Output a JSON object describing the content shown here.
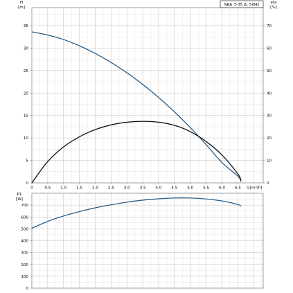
{
  "chart_data": [
    {
      "type": "line",
      "title": "SBA 3-35 A, 50Hz",
      "xlabel": "Q [m³/h]",
      "x_unit_label": "Q",
      "x_unit_suffix": "[m³/h]",
      "ylabel_left_name": "H",
      "ylabel_left_unit": "[m]",
      "ylabel_right_name": "eta",
      "ylabel_right_unit": "[%]",
      "xlim": [
        0,
        7.3
      ],
      "ylim_left": [
        0,
        39
      ],
      "ylim_right": [
        0,
        78
      ],
      "x_ticks": [
        "0",
        "0.5",
        "1.0",
        "1.5",
        "2.0",
        "2.5",
        "3.0",
        "3.5",
        "4.0",
        "4.5",
        "5.0",
        "5.5",
        "6.0",
        "6.5"
      ],
      "x_tick_values": [
        0,
        0.5,
        1.0,
        1.5,
        2.0,
        2.5,
        3.0,
        3.5,
        4.0,
        4.5,
        5.0,
        5.5,
        6.0,
        6.5
      ],
      "y_left_ticks": [
        "0",
        "5",
        "10",
        "15",
        "20",
        "25",
        "30",
        "35"
      ],
      "y_left_tick_values": [
        0,
        5,
        10,
        15,
        20,
        25,
        30,
        35
      ],
      "y_right_ticks": [
        "0",
        "10",
        "20",
        "30",
        "40",
        "50",
        "60",
        "70"
      ],
      "y_right_tick_values": [
        0,
        10,
        20,
        30,
        40,
        50,
        60,
        70
      ],
      "grid": true,
      "series": [
        {
          "axis": "left",
          "color": "#2b5d86",
          "x": [
            0,
            0.5,
            1.0,
            1.5,
            2.0,
            2.5,
            3.0,
            3.5,
            4.0,
            4.5,
            5.0,
            5.5,
            6.0,
            6.5,
            6.6
          ],
          "values": [
            33.6,
            32.9,
            31.9,
            30.5,
            28.8,
            26.8,
            24.5,
            21.9,
            19.0,
            15.8,
            12.3,
            8.5,
            4.5,
            1.5,
            0.3
          ]
        },
        {
          "axis": "right",
          "color": "#111111",
          "x": [
            0,
            0.5,
            1.0,
            1.5,
            2.0,
            2.5,
            3.0,
            3.5,
            4.0,
            4.5,
            5.0,
            5.5,
            6.0,
            6.5,
            6.6
          ],
          "values": [
            0,
            9.5,
            16.0,
            20.5,
            23.7,
            25.8,
            27.0,
            27.4,
            27.0,
            25.6,
            22.8,
            18.4,
            12.4,
            4.0,
            1.0
          ]
        }
      ]
    },
    {
      "type": "line",
      "ylabel_name": "P1",
      "ylabel_unit": "[W]",
      "xlim": [
        0,
        7.3
      ],
      "ylim": [
        0,
        800
      ],
      "y_ticks": [
        "0",
        "100",
        "200",
        "300",
        "400",
        "500",
        "600",
        "700"
      ],
      "y_tick_values": [
        0,
        100,
        200,
        300,
        400,
        500,
        600,
        700
      ],
      "x_tick_values": [
        0,
        0.5,
        1.0,
        1.5,
        2.0,
        2.5,
        3.0,
        3.5,
        4.0,
        4.5,
        5.0,
        5.5,
        6.0,
        6.5
      ],
      "grid": true,
      "series": [
        {
          "color": "#2b5d86",
          "x": [
            0,
            0.5,
            1.0,
            1.5,
            2.0,
            2.5,
            3.0,
            3.5,
            4.0,
            4.5,
            5.0,
            5.5,
            6.0,
            6.5,
            6.6
          ],
          "values": [
            505,
            563,
            608,
            645,
            677,
            703,
            725,
            742,
            753,
            760,
            760,
            752,
            735,
            705,
            690
          ]
        }
      ]
    }
  ]
}
